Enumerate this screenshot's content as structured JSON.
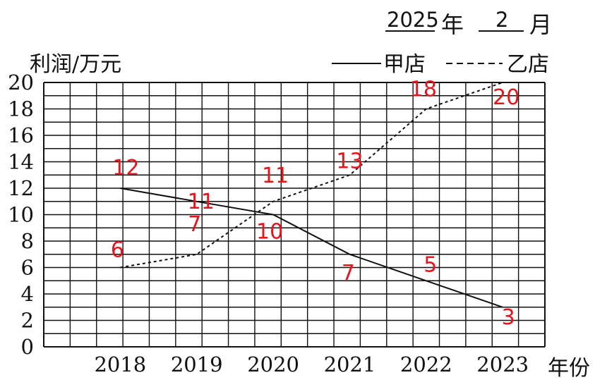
{
  "header": {
    "year_value": "2025",
    "year_label": "年",
    "month_value": "2",
    "month_label": "月"
  },
  "legend": {
    "a_label": "甲店",
    "b_label": "乙店"
  },
  "colors": {
    "line": "#111111",
    "grid": "#111111",
    "annotation": "#e8141c"
  },
  "chart_data": {
    "type": "line",
    "ylabel": "利润/万元",
    "xlabel": "年份",
    "categories": [
      "2018",
      "2019",
      "2020",
      "2021",
      "2022",
      "2023"
    ],
    "ylim": [
      0,
      20
    ],
    "yticks": [
      0,
      2,
      4,
      6,
      8,
      10,
      12,
      14,
      16,
      18,
      20
    ],
    "grid": true,
    "legend_position": "top-right",
    "series": [
      {
        "name": "甲店",
        "style": "solid",
        "values": [
          12,
          11,
          10,
          7,
          5,
          3
        ]
      },
      {
        "name": "乙店",
        "style": "dashed",
        "values": [
          6,
          7,
          11,
          13,
          18,
          20
        ]
      }
    ],
    "annotations": [
      {
        "series": "甲店",
        "category": "2018",
        "text": "12"
      },
      {
        "series": "甲店",
        "category": "2019",
        "text": "11"
      },
      {
        "series": "甲店",
        "category": "2020",
        "text": "10"
      },
      {
        "series": "甲店",
        "category": "2021",
        "text": "7"
      },
      {
        "series": "甲店",
        "category": "2022",
        "text": "5"
      },
      {
        "series": "甲店",
        "category": "2023",
        "text": "3"
      },
      {
        "series": "乙店",
        "category": "2018",
        "text": "6"
      },
      {
        "series": "乙店",
        "category": "2019",
        "text": "7"
      },
      {
        "series": "乙店",
        "category": "2020",
        "text": "11"
      },
      {
        "series": "乙店",
        "category": "2021",
        "text": "13"
      },
      {
        "series": "乙店",
        "category": "2022",
        "text": "18"
      },
      {
        "series": "乙店",
        "category": "2023",
        "text": "20"
      }
    ]
  }
}
